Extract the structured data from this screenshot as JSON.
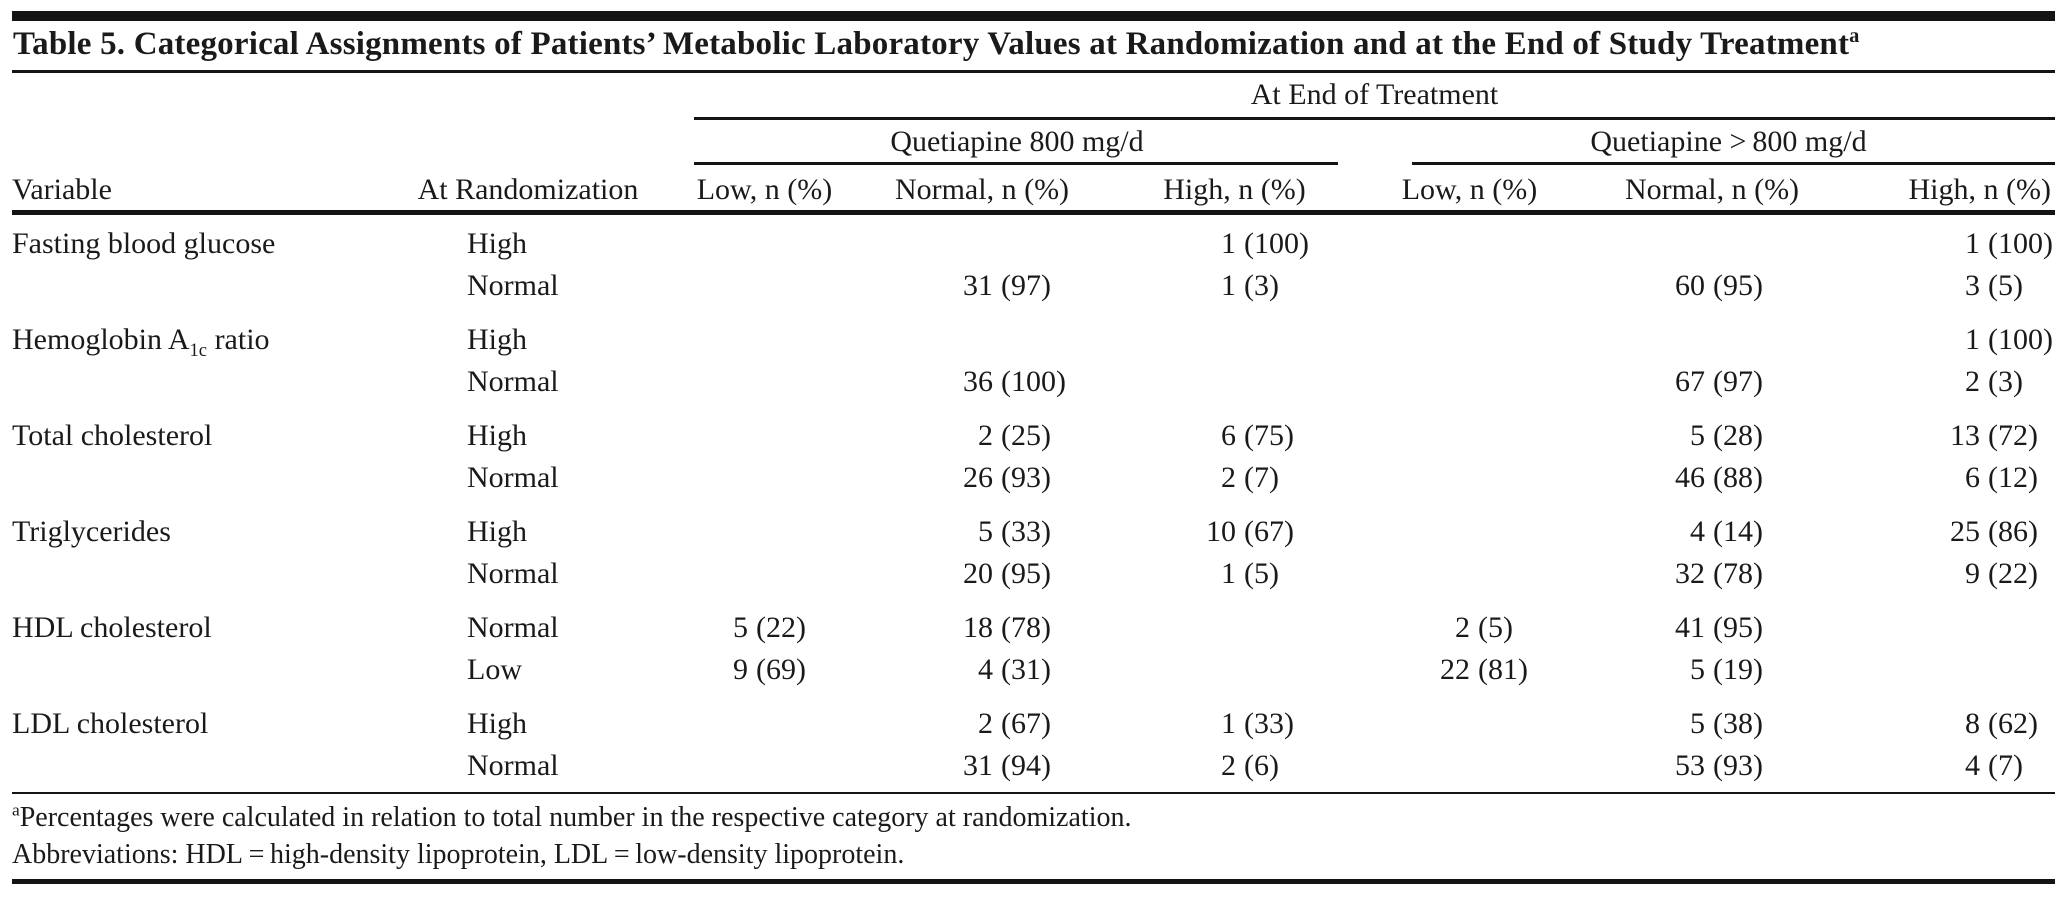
{
  "title": {
    "text": "Table 5. Categorical Assignments of Patients’ Metabolic Laboratory Values at Randomization and at the End of Study Treatment",
    "superscript": "a"
  },
  "header": {
    "span_top": "At End of Treatment",
    "groups": [
      {
        "label": "Quetiapine 800 mg/d"
      },
      {
        "label": "Quetiapine > 800 mg/d"
      }
    ],
    "columns": [
      "Variable",
      "At Randomization",
      "Low, n (%)",
      "Normal, n (%)",
      "High, n (%)",
      "Low, n (%)",
      "Normal, n (%)",
      "High, n (%)"
    ]
  },
  "table": {
    "rows": [
      {
        "variable": "Fasting blood glucose",
        "category": "High",
        "cells": [
          null,
          null,
          {
            "n": "1",
            "p": "(100)"
          },
          null,
          null,
          {
            "n": "1",
            "p": "(100)"
          }
        ]
      },
      {
        "variable": "",
        "category": "Normal",
        "cells": [
          null,
          {
            "n": "31",
            "p": "(97)"
          },
          {
            "n": "1",
            "p": "(3)"
          },
          null,
          {
            "n": "60",
            "p": "(95)"
          },
          {
            "n": "3",
            "p": "(5)"
          }
        ]
      },
      {
        "variable_parts": {
          "pre": "Hemoglobin A",
          "sub": "1c",
          "post": " ratio"
        },
        "group_start": true,
        "category": "High",
        "cells": [
          null,
          null,
          null,
          null,
          null,
          {
            "n": "1",
            "p": "(100)"
          }
        ]
      },
      {
        "variable": "",
        "category": "Normal",
        "cells": [
          null,
          {
            "n": "36",
            "p": "(100)"
          },
          null,
          null,
          {
            "n": "67",
            "p": "(97)"
          },
          {
            "n": "2",
            "p": "(3)"
          }
        ]
      },
      {
        "variable": "Total cholesterol",
        "group_start": true,
        "category": "High",
        "cells": [
          null,
          {
            "n": "2",
            "p": "(25)"
          },
          {
            "n": "6",
            "p": "(75)"
          },
          null,
          {
            "n": "5",
            "p": "(28)"
          },
          {
            "n": "13",
            "p": "(72)"
          }
        ]
      },
      {
        "variable": "",
        "category": "Normal",
        "cells": [
          null,
          {
            "n": "26",
            "p": "(93)"
          },
          {
            "n": "2",
            "p": "(7)"
          },
          null,
          {
            "n": "46",
            "p": "(88)"
          },
          {
            "n": "6",
            "p": "(12)"
          }
        ]
      },
      {
        "variable": "Triglycerides",
        "group_start": true,
        "category": "High",
        "cells": [
          null,
          {
            "n": "5",
            "p": "(33)"
          },
          {
            "n": "10",
            "p": "(67)"
          },
          null,
          {
            "n": "4",
            "p": "(14)"
          },
          {
            "n": "25",
            "p": "(86)"
          }
        ]
      },
      {
        "variable": "",
        "category": "Normal",
        "cells": [
          null,
          {
            "n": "20",
            "p": "(95)"
          },
          {
            "n": "1",
            "p": "(5)"
          },
          null,
          {
            "n": "32",
            "p": "(78)"
          },
          {
            "n": "9",
            "p": "(22)"
          }
        ]
      },
      {
        "variable": "HDL cholesterol",
        "group_start": true,
        "category": "Normal",
        "cells": [
          {
            "n": "5",
            "p": "(22)"
          },
          {
            "n": "18",
            "p": "(78)"
          },
          null,
          {
            "n": "2",
            "p": "(5)"
          },
          {
            "n": "41",
            "p": "(95)"
          },
          null
        ]
      },
      {
        "variable": "",
        "category": "Low",
        "cells": [
          {
            "n": "9",
            "p": "(69)"
          },
          {
            "n": "4",
            "p": "(31)"
          },
          null,
          {
            "n": "22",
            "p": "(81)"
          },
          {
            "n": "5",
            "p": "(19)"
          },
          null
        ]
      },
      {
        "variable": "LDL cholesterol",
        "group_start": true,
        "category": "High",
        "cells": [
          null,
          {
            "n": "2",
            "p": "(67)"
          },
          {
            "n": "1",
            "p": "(33)"
          },
          null,
          {
            "n": "5",
            "p": "(38)"
          },
          {
            "n": "8",
            "p": "(62)"
          }
        ]
      },
      {
        "variable": "",
        "category": "Normal",
        "cells": [
          null,
          {
            "n": "31",
            "p": "(94)"
          },
          {
            "n": "2",
            "p": "(6)"
          },
          null,
          {
            "n": "53",
            "p": "(93)"
          },
          {
            "n": "4",
            "p": "(7)"
          }
        ]
      }
    ]
  },
  "footnotes": {
    "a_sup": "a",
    "a_text": "Percentages were calculated in relation to total number in the respective category at randomization.",
    "abbreviations": "Abbreviations: HDL = high-density lipoprotein, LDL = low-density lipoprotein."
  },
  "colors": {
    "text": "#1a1a1a",
    "rule": "#141414",
    "background": "#ffffff"
  }
}
